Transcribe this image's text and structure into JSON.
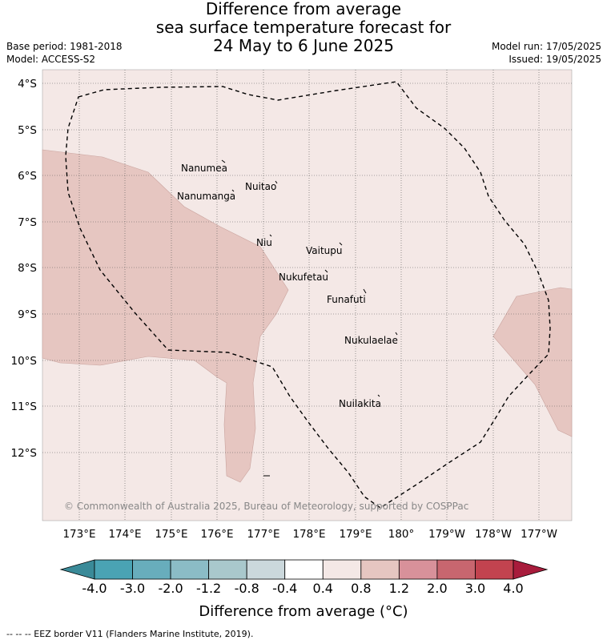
{
  "header": {
    "title_lines": [
      "Difference from average",
      "sea surface temperature forecast for",
      "24 May to 6 June 2025"
    ],
    "base_period": "Base period: 1981-2018",
    "model": "Model: ACCESS-S2",
    "model_run": "Model run: 17/05/2025",
    "issued": "Issued: 19/05/2025"
  },
  "map": {
    "lat_labels": [
      "4°S",
      "5°S",
      "6°S",
      "7°S",
      "8°S",
      "9°S",
      "10°S",
      "11°S",
      "12°S"
    ],
    "lon_labels": [
      "173°E",
      "174°E",
      "175°E",
      "176°E",
      "177°E",
      "178°E",
      "179°E",
      "180°",
      "179°W",
      "178°W",
      "177°W"
    ],
    "islands": [
      "Nanumea",
      "Nuitao",
      "Nanumanga",
      "Niu",
      "Vaitupu",
      "Nukufetau",
      "Funafuti",
      "Nukulaelae",
      "Nuilakita"
    ],
    "copyright": "© Commonwealth of Australia 2025, Bureau of Meteorology, supported by COSPPac",
    "background_anomaly_color": "#f4e8e6",
    "warm_anomaly_color": "#e6c6c1"
  },
  "colorbar": {
    "title": "Difference from average (°C)",
    "tick_labels": [
      "-4.0",
      "-3.0",
      "-2.0",
      "-1.2",
      "-0.8",
      "-0.4",
      "0.4",
      "0.8",
      "1.2",
      "2.0",
      "3.0",
      "4.0"
    ],
    "under_color": "#3a8a98",
    "over_color": "#a81c3c",
    "colors": [
      "#4aa3b4",
      "#68adbc",
      "#8bbcc6",
      "#a9c8cc",
      "#cbd8dc",
      "#ffffff",
      "#f4e8e6",
      "#e6c6c1",
      "#d8919a",
      "#c8666f",
      "#c2434f"
    ]
  },
  "footer": {
    "legend": "--  --  -- EEZ border V11 (Flanders Marine Institute, 2019)."
  }
}
